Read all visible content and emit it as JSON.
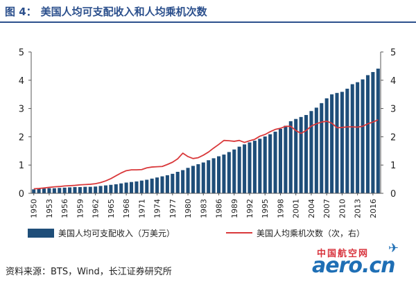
{
  "title_number": "图 4：",
  "title_text": "美国人均可支配收入和人均乘机次数",
  "source": "资料来源：BTS，Wind，长江证券研究所",
  "watermark": {
    "cn": "中国航空网",
    "en": "aero.cn"
  },
  "colors": {
    "bar": "#1f4e79",
    "line": "#d9383a",
    "title": "#2b4f8c"
  },
  "chart_data": {
    "type": "bar",
    "x": [
      1950,
      1951,
      1952,
      1953,
      1954,
      1955,
      1956,
      1957,
      1958,
      1959,
      1960,
      1961,
      1962,
      1963,
      1964,
      1965,
      1966,
      1967,
      1968,
      1969,
      1970,
      1971,
      1972,
      1973,
      1974,
      1975,
      1976,
      1977,
      1978,
      1979,
      1980,
      1981,
      1982,
      1983,
      1984,
      1985,
      1986,
      1987,
      1988,
      1989,
      1990,
      1991,
      1992,
      1993,
      1994,
      1995,
      1996,
      1997,
      1998,
      1999,
      2000,
      2001,
      2002,
      2003,
      2004,
      2005,
      2006,
      2007,
      2008,
      2009,
      2010,
      2011,
      2012,
      2013,
      2014,
      2015,
      2016,
      2017
    ],
    "x_tick_labels": [
      "1950",
      "1953",
      "1956",
      "1959",
      "1962",
      "1965",
      "1968",
      "1971",
      "1974",
      "1977",
      "1980",
      "1983",
      "1986",
      "1989",
      "1992",
      "1995",
      "1998",
      "2001",
      "2004",
      "2007",
      "2010",
      "2013",
      "2016"
    ],
    "series": [
      {
        "name": "美国人均可支配收入（万美元）",
        "type": "bar",
        "axis": "left",
        "values": [
          0.14,
          0.16,
          0.17,
          0.18,
          0.18,
          0.19,
          0.2,
          0.21,
          0.22,
          0.22,
          0.23,
          0.23,
          0.24,
          0.26,
          0.28,
          0.3,
          0.32,
          0.35,
          0.38,
          0.4,
          0.42,
          0.45,
          0.48,
          0.52,
          0.56,
          0.6,
          0.64,
          0.69,
          0.76,
          0.82,
          0.9,
          0.97,
          1.03,
          1.09,
          1.17,
          1.24,
          1.31,
          1.37,
          1.46,
          1.55,
          1.65,
          1.73,
          1.8,
          1.86,
          1.93,
          2.01,
          2.09,
          2.18,
          2.28,
          2.39,
          2.55,
          2.63,
          2.7,
          2.77,
          2.91,
          3.03,
          3.19,
          3.36,
          3.5,
          3.55,
          3.59,
          3.7,
          3.86,
          3.93,
          4.03,
          4.18,
          4.29,
          4.41
        ]
      },
      {
        "name": "美国人均乘机次数（次，右）",
        "type": "line",
        "axis": "right",
        "values": [
          0.16,
          0.17,
          0.19,
          0.21,
          0.23,
          0.24,
          0.26,
          0.27,
          0.28,
          0.3,
          0.31,
          0.32,
          0.34,
          0.38,
          0.44,
          0.52,
          0.62,
          0.72,
          0.8,
          0.83,
          0.83,
          0.84,
          0.9,
          0.93,
          0.94,
          0.95,
          1.02,
          1.1,
          1.22,
          1.42,
          1.3,
          1.23,
          1.26,
          1.35,
          1.46,
          1.6,
          1.73,
          1.87,
          1.86,
          1.84,
          1.87,
          1.8,
          1.86,
          1.91,
          2.02,
          2.08,
          2.18,
          2.26,
          2.3,
          2.37,
          2.37,
          2.22,
          2.12,
          2.22,
          2.38,
          2.46,
          2.52,
          2.55,
          2.48,
          2.32,
          2.33,
          2.35,
          2.35,
          2.34,
          2.37,
          2.46,
          2.52,
          2.6
        ]
      }
    ],
    "ylim_left": [
      0,
      5
    ],
    "ylim_right": [
      0,
      5
    ],
    "y_ticks": [
      "0",
      "1",
      "2",
      "3",
      "4",
      "5"
    ],
    "legend_position": "bottom",
    "grid": false
  }
}
